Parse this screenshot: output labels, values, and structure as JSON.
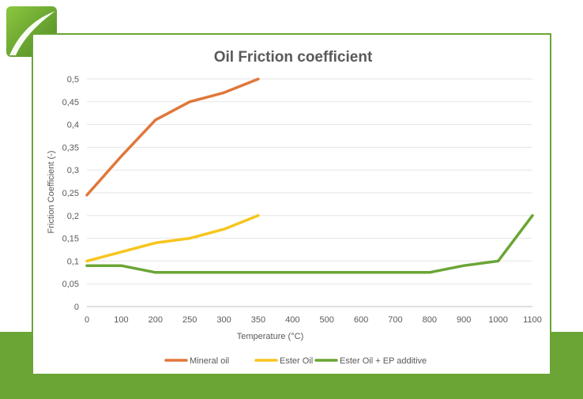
{
  "colors": {
    "band": "#6aa535",
    "mineral": "#e0773a",
    "ester": "#f7c51e",
    "ester_ep": "#6aa535",
    "grid": "#e6e6e6"
  },
  "logo": {
    "icon": "leaf-logo-icon"
  },
  "chart_data": {
    "type": "line",
    "title": "Oil Friction coefficient",
    "xlabel": "Temperature (°C)",
    "ylabel": "Friction Coefficient (-)",
    "categories": [
      "0",
      "100",
      "200",
      "250",
      "300",
      "350",
      "400",
      "500",
      "600",
      "700",
      "800",
      "900",
      "1000",
      "1100"
    ],
    "yticks": [
      "0",
      "0,05",
      "0,1",
      "0,15",
      "0,2",
      "0,25",
      "0,3",
      "0,35",
      "0,4",
      "0,45",
      "0,5"
    ],
    "ylim": [
      0,
      0.5
    ],
    "grid": true,
    "legend_position": "bottom",
    "series": [
      {
        "name": "Mineral oil",
        "color": "#e0773a",
        "values": [
          0.245,
          0.33,
          0.41,
          0.45,
          0.47,
          0.5,
          null,
          null,
          null,
          null,
          null,
          null,
          null,
          null
        ]
      },
      {
        "name": "Ester Oil",
        "color": "#f7c51e",
        "values": [
          0.1,
          0.12,
          0.14,
          0.15,
          0.17,
          0.2,
          null,
          null,
          null,
          null,
          null,
          null,
          null,
          null
        ]
      },
      {
        "name": "Ester Oil + EP additive",
        "color": "#6aa535",
        "values": [
          0.09,
          0.09,
          0.075,
          0.075,
          0.075,
          0.075,
          0.075,
          0.075,
          0.075,
          0.075,
          0.075,
          0.09,
          0.1,
          0.2
        ]
      }
    ]
  }
}
